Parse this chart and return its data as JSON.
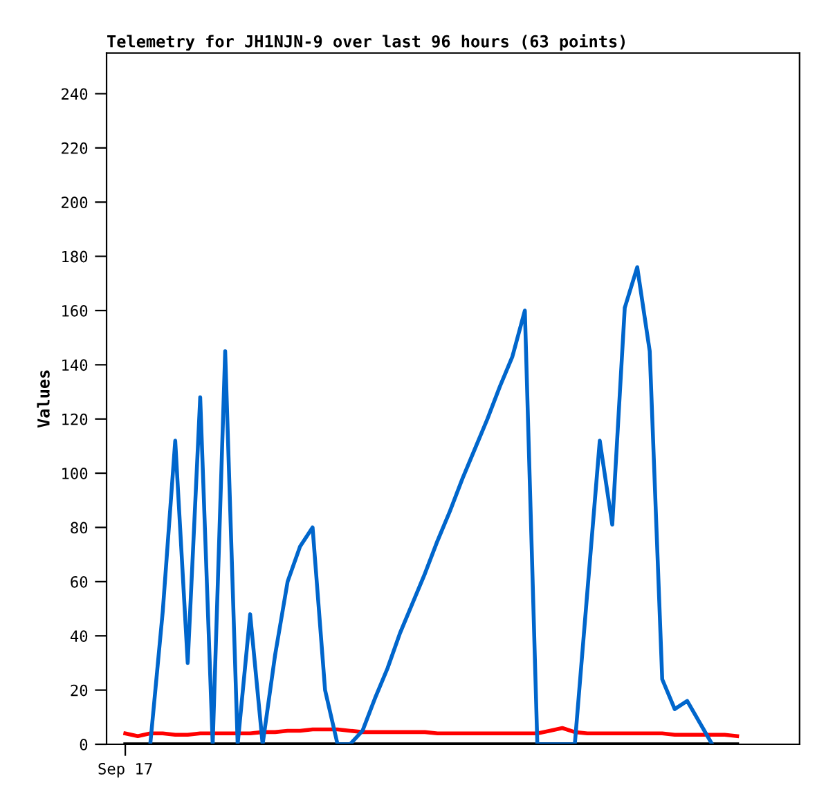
{
  "chart_data": {
    "type": "line",
    "title": "Telemetry for JH1NJN-9 over last 96 hours (63 points)",
    "ylabel": "Values",
    "categories": [
      "Sep 17",
      null,
      null,
      null,
      null,
      null,
      null,
      null,
      null,
      null,
      null,
      null,
      null,
      null,
      null,
      null,
      null,
      null,
      null,
      null,
      null,
      null,
      null,
      null,
      null,
      null,
      null,
      null,
      null,
      null,
      null,
      null,
      null,
      null,
      null,
      null,
      null,
      null,
      null,
      null,
      null,
      null,
      null,
      null,
      null,
      null,
      null,
      null,
      null,
      null
    ],
    "ylim": [
      0,
      255
    ],
    "yticks": [
      0,
      20,
      40,
      60,
      80,
      100,
      120,
      140,
      160,
      180,
      200,
      220,
      240
    ],
    "grid": false,
    "series": [
      {
        "color": "#000000",
        "values": [
          0,
          0,
          0,
          0,
          0,
          0,
          0,
          0,
          0,
          0,
          0,
          0,
          0,
          0,
          0,
          0,
          0,
          0,
          0,
          0,
          0,
          0,
          0,
          0,
          0,
          0,
          0,
          0,
          0,
          0,
          0,
          0,
          0,
          0,
          0,
          0,
          0,
          0,
          0,
          0,
          0,
          0,
          0,
          0,
          0,
          0,
          0,
          0,
          0,
          0
        ]
      },
      {
        "color": "#ff0000",
        "values": [
          4,
          3,
          4,
          4,
          3.5,
          3.5,
          4,
          4,
          4,
          4,
          4,
          4.5,
          4.5,
          5,
          5,
          5.5,
          5.5,
          5.5,
          5,
          4.5,
          4.5,
          4.5,
          4.5,
          4.5,
          4.5,
          4,
          4,
          4,
          4,
          4,
          4,
          4,
          4,
          4,
          5,
          6,
          4.5,
          4,
          4,
          4,
          4,
          4,
          4,
          4,
          3.5,
          3.5,
          3.5,
          3.5,
          3.5,
          3
        ]
      },
      {
        "color": "#0066cc",
        "values": [
          null,
          null,
          0,
          49,
          112,
          30,
          128,
          0,
          145,
          0,
          48,
          0,
          33,
          60,
          73,
          80,
          20,
          0,
          0,
          5,
          17,
          28,
          41,
          52,
          63,
          75,
          86,
          98,
          109,
          120,
          132,
          143,
          160,
          0,
          0,
          0,
          0,
          56,
          112,
          81,
          161,
          176,
          145,
          24,
          13,
          16,
          8,
          0,
          null,
          null
        ]
      }
    ]
  }
}
